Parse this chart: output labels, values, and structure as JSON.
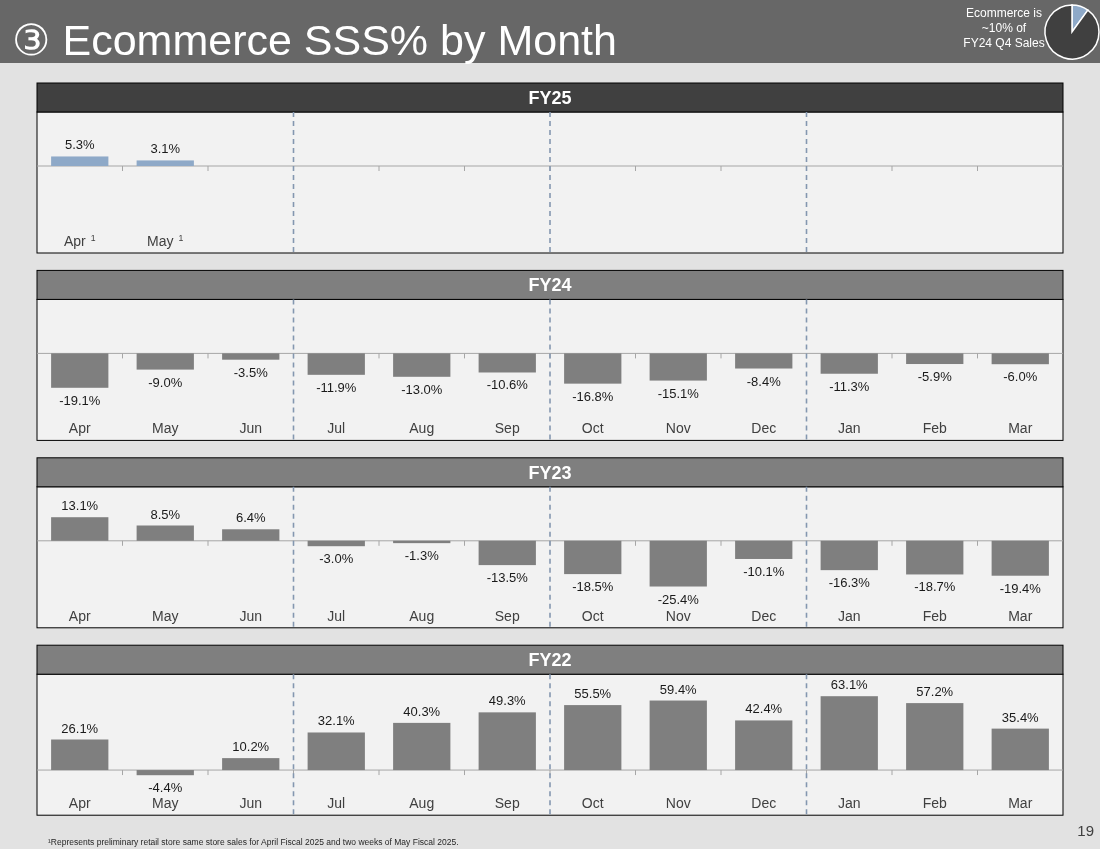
{
  "chart_data": [
    {
      "type": "other",
      "title": "③ Ecommerce SSS% by Month",
      "annotations": [
        "19",
        "¹Represents preliminary retail store same store sales for April Fiscal 2025 and two weeks of May Fiscal 2025."
      ]
    },
    {
      "type": "pie",
      "title": "Ecommerce is\n~10% of\nFY24 Q4 Sales",
      "categories": [
        null,
        null
      ],
      "values": [
        10,
        90
      ],
      "colors": [
        "#8ea9c8",
        "#404040"
      ]
    },
    {
      "type": "bar",
      "title": "FY25",
      "categories": [
        "Apr$^{1}$",
        "May$^{1}$",
        null,
        null,
        null,
        null,
        null,
        null,
        null,
        null,
        null,
        null
      ],
      "values": [
        5.3,
        3.1,
        null,
        null,
        null,
        null,
        null,
        null,
        null,
        null,
        null,
        null
      ],
      "value_labels": [
        "5.3%",
        "3.1%",
        null,
        null,
        null,
        null,
        null,
        null,
        null,
        null,
        null,
        null
      ],
      "color": "#8ea9c8"
    },
    {
      "type": "bar",
      "title": "FY24",
      "categories": [
        "Apr",
        "May",
        "Jun",
        "Jul",
        "Aug",
        "Sep",
        "Oct",
        "Nov",
        "Dec",
        "Jan",
        "Feb",
        "Mar"
      ],
      "values": [
        -19.1,
        -9.0,
        -3.5,
        -11.9,
        -13.0,
        -10.6,
        -16.8,
        -15.1,
        -8.4,
        -11.3,
        -5.9,
        -6.0
      ],
      "value_labels": [
        "-19.1%",
        "-9.0%",
        "-3.5%",
        "-11.9%",
        "-13.0%",
        "-10.6%",
        "-16.8%",
        "-15.1%",
        "-8.4%",
        "-11.3%",
        "-5.9%",
        "-6.0%"
      ],
      "color": "#7f7f7f"
    },
    {
      "type": "bar",
      "title": "FY23",
      "categories": [
        "Apr",
        "May",
        "Jun",
        "Jul",
        "Aug",
        "Sep",
        "Oct",
        "Nov",
        "Dec",
        "Jan",
        "Feb",
        "Mar"
      ],
      "values": [
        13.1,
        8.5,
        6.4,
        -3.0,
        -1.3,
        -13.5,
        -18.5,
        -25.4,
        -10.1,
        -16.3,
        -18.7,
        -19.4
      ],
      "value_labels": [
        "13.1%",
        "8.5%",
        "6.4%",
        "-3.0%",
        "-1.3%",
        "-13.5%",
        "-18.5%",
        "-25.4%",
        "-10.1%",
        "-16.3%",
        "-18.7%",
        "-19.4%"
      ],
      "color": "#7f7f7f"
    },
    {
      "type": "bar",
      "title": "FY22",
      "categories": [
        "Apr",
        "May",
        "Jun",
        "Jul",
        "Aug",
        "Sep",
        "Oct",
        "Nov",
        "Dec",
        "Jan",
        "Feb",
        "Mar"
      ],
      "values": [
        26.1,
        -4.4,
        10.2,
        32.1,
        40.3,
        49.3,
        55.5,
        59.4,
        42.4,
        63.1,
        57.2,
        35.4
      ],
      "value_labels": [
        "26.1%",
        "-4.4%",
        "10.2%",
        "32.1%",
        "40.3%",
        "49.3%",
        "55.5%",
        "59.4%",
        "42.4%",
        "63.1%",
        "57.2%",
        "35.4%"
      ],
      "color": "#7f7f7f"
    }
  ]
}
